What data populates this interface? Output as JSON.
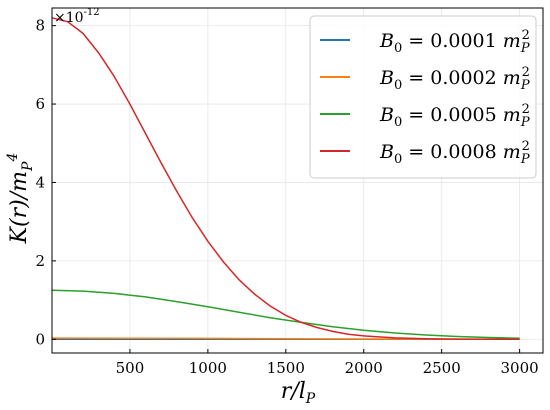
{
  "chart_data": {
    "type": "line",
    "xlabel": "r/l_P",
    "ylabel": "K(r)/m_P^4",
    "y_scale_label": "×10^{-12}",
    "xlim": [
      0,
      3150
    ],
    "ylim": [
      -0.35,
      8.45
    ],
    "x_ticks": [
      500,
      1000,
      1500,
      2000,
      2500,
      3000
    ],
    "y_ticks": [
      0,
      2,
      4,
      6,
      8
    ],
    "grid": true,
    "legend_position": "top-right",
    "series": [
      {
        "name": "B_0 = 0.0001 m_P^2",
        "color": "#1f77b4",
        "x": [
          0,
          500,
          1000,
          1500,
          2000,
          2500,
          3000
        ],
        "y": [
          0.0018,
          0.0017,
          0.0013,
          0.0009,
          0.0005,
          0.0002,
          0.0001
        ]
      },
      {
        "name": "B_0 = 0.0002 m_P^2",
        "color": "#ff7f0e",
        "x": [
          0,
          500,
          1000,
          1500,
          2000,
          2500,
          3000
        ],
        "y": [
          0.03,
          0.028,
          0.022,
          0.015,
          0.008,
          0.004,
          0.002
        ]
      },
      {
        "name": "B_0 = 0.0005 m_P^2",
        "color": "#2ca02c",
        "x": [
          0,
          200,
          400,
          600,
          800,
          1000,
          1200,
          1400,
          1600,
          1800,
          2000,
          2200,
          2400,
          2600,
          2800,
          3000
        ],
        "y": [
          1.25,
          1.23,
          1.17,
          1.08,
          0.96,
          0.83,
          0.69,
          0.55,
          0.43,
          0.32,
          0.23,
          0.16,
          0.11,
          0.07,
          0.045,
          0.028
        ]
      },
      {
        "name": "B_0 = 0.0008 m_P^2",
        "color": "#d62728",
        "x": [
          0,
          100,
          200,
          300,
          400,
          500,
          600,
          700,
          800,
          900,
          1000,
          1100,
          1200,
          1300,
          1400,
          1500,
          1600,
          1700,
          1800,
          1900,
          2000,
          2200,
          2400,
          2600,
          2800,
          3000
        ],
        "y": [
          8.2,
          8.1,
          7.8,
          7.3,
          6.7,
          6.0,
          5.25,
          4.5,
          3.78,
          3.1,
          2.5,
          1.97,
          1.52,
          1.15,
          0.85,
          0.61,
          0.43,
          0.3,
          0.2,
          0.13,
          0.085,
          0.035,
          0.014,
          0.005,
          0.002,
          0.0007
        ]
      }
    ]
  }
}
